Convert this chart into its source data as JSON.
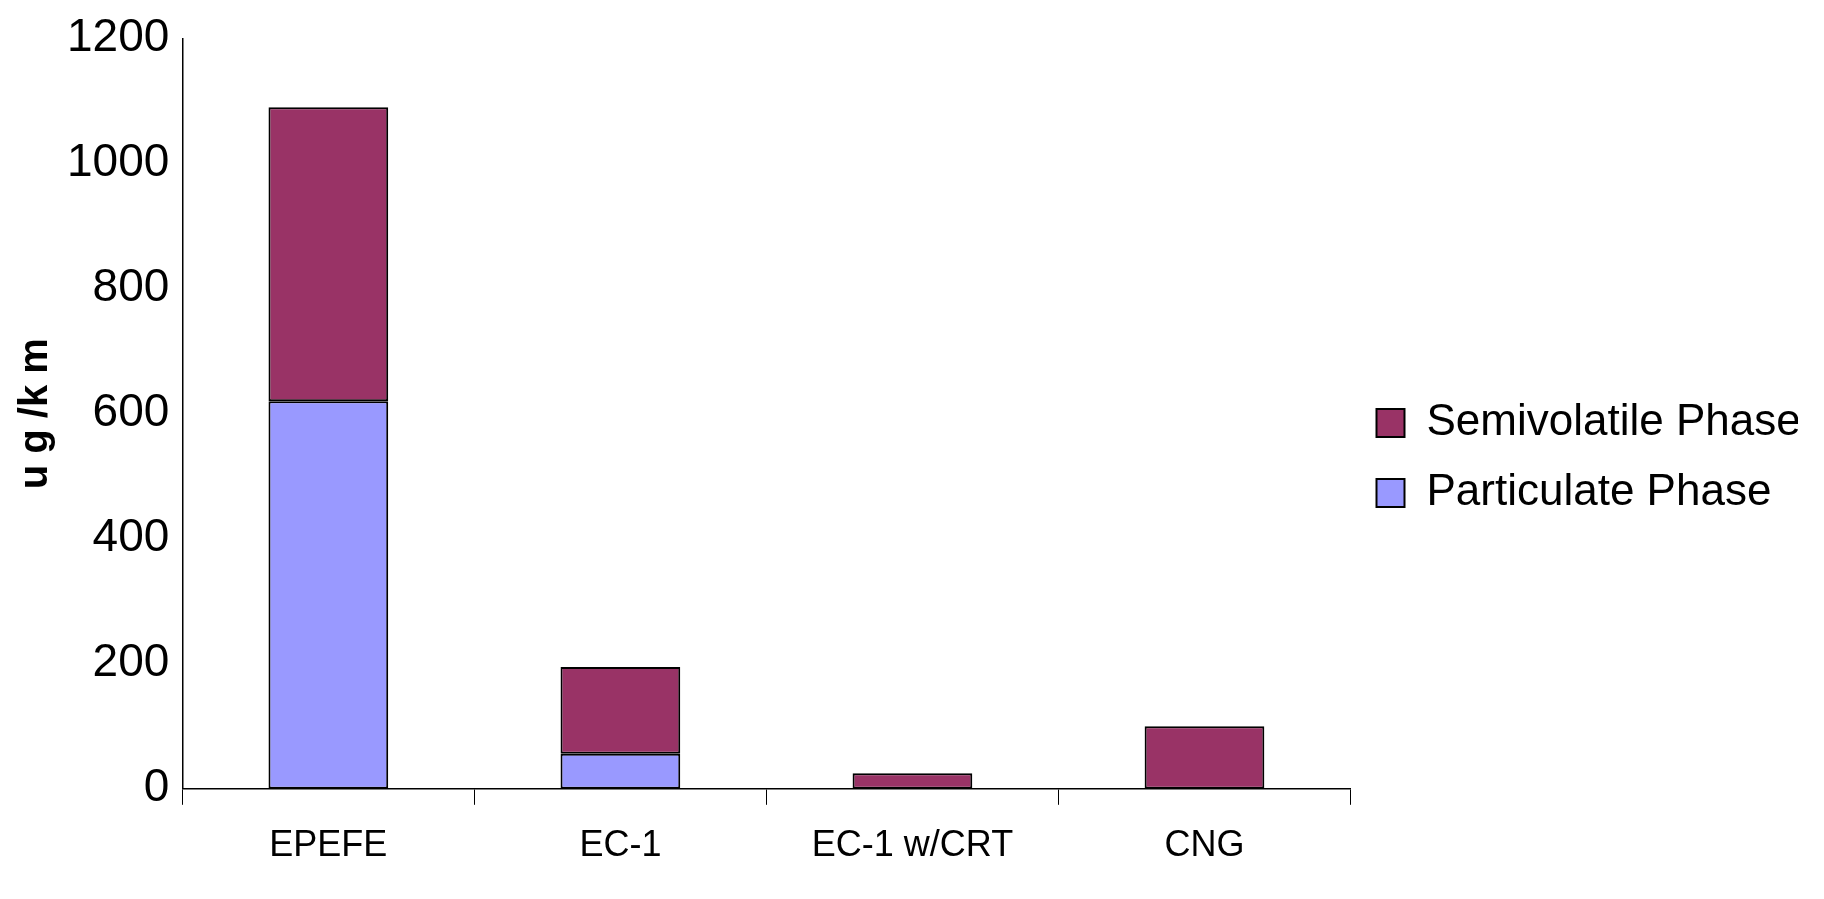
{
  "chart_data": {
    "type": "bar",
    "stacked": true,
    "ylabel": "u g /k m",
    "categories": [
      "EPEFE",
      "EC-1",
      "EC-1 w/CRT",
      "CNG"
    ],
    "series": [
      {
        "name": "Particulate Phase",
        "color": "#9999ff",
        "values": [
          620,
          56,
          0,
          0
        ]
      },
      {
        "name": "Semivolatile Phase",
        "color": "#993366",
        "values": [
          470,
          139,
          25,
          100
        ]
      }
    ],
    "ylim": [
      0,
      1200
    ],
    "yticks": [
      0,
      200,
      400,
      600,
      800,
      1000,
      1200
    ],
    "grid": false,
    "legend": "right"
  }
}
